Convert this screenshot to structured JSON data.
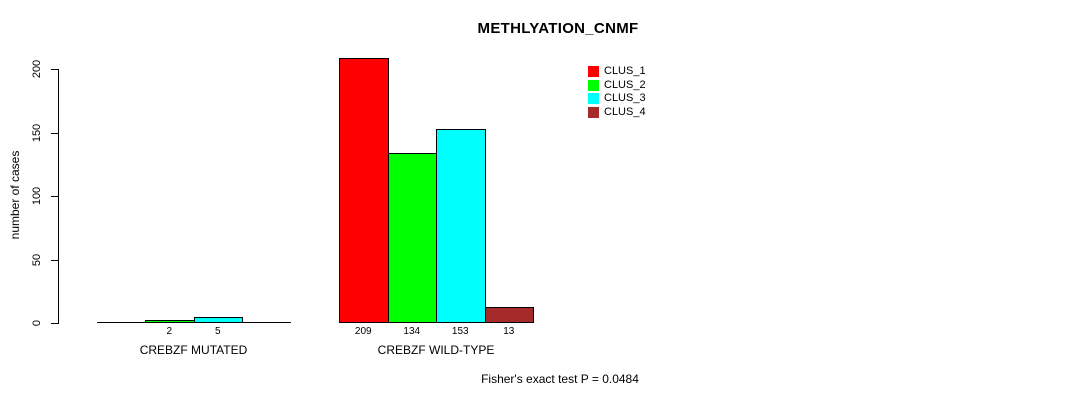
{
  "title": "METHLYATION_CNMF",
  "y_axis": {
    "label": "number of cases",
    "ticks": [
      0,
      50,
      100,
      150,
      200
    ]
  },
  "footer": "Fisher's exact test P = 0.0484",
  "legend": {
    "items": [
      {
        "label": "CLUS_1",
        "color": "#ff0000"
      },
      {
        "label": "CLUS_2",
        "color": "#00ff00"
      },
      {
        "label": "CLUS_3",
        "color": "#00ffff"
      },
      {
        "label": "CLUS_4",
        "color": "#a52a2a"
      }
    ]
  },
  "chart_data": {
    "type": "bar",
    "title": "METHLYATION_CNMF",
    "ylabel": "number of cases",
    "xlabel": "",
    "ylim": [
      0,
      200
    ],
    "yticks": [
      0,
      50,
      100,
      150,
      200
    ],
    "grid": false,
    "legend_position": "top-right",
    "annotation": "Fisher's exact test P = 0.0484",
    "series_colors": {
      "CLUS_1": "#ff0000",
      "CLUS_2": "#00ff00",
      "CLUS_3": "#00ffff",
      "CLUS_4": "#a52a2a"
    },
    "groups": [
      {
        "category": "CREBZF MUTATED",
        "bars": [
          {
            "name": "CLUS_1",
            "value": 0,
            "label": ""
          },
          {
            "name": "CLUS_2",
            "value": 2,
            "label": "2"
          },
          {
            "name": "CLUS_3",
            "value": 5,
            "label": "5"
          },
          {
            "name": "CLUS_4",
            "value": 0,
            "label": ""
          }
        ]
      },
      {
        "category": "CREBZF WILD-TYPE",
        "bars": [
          {
            "name": "CLUS_1",
            "value": 209,
            "label": "209"
          },
          {
            "name": "CLUS_2",
            "value": 134,
            "label": "134"
          },
          {
            "name": "CLUS_3",
            "value": 153,
            "label": "153"
          },
          {
            "name": "CLUS_4",
            "value": 13,
            "label": "13"
          }
        ]
      }
    ]
  }
}
